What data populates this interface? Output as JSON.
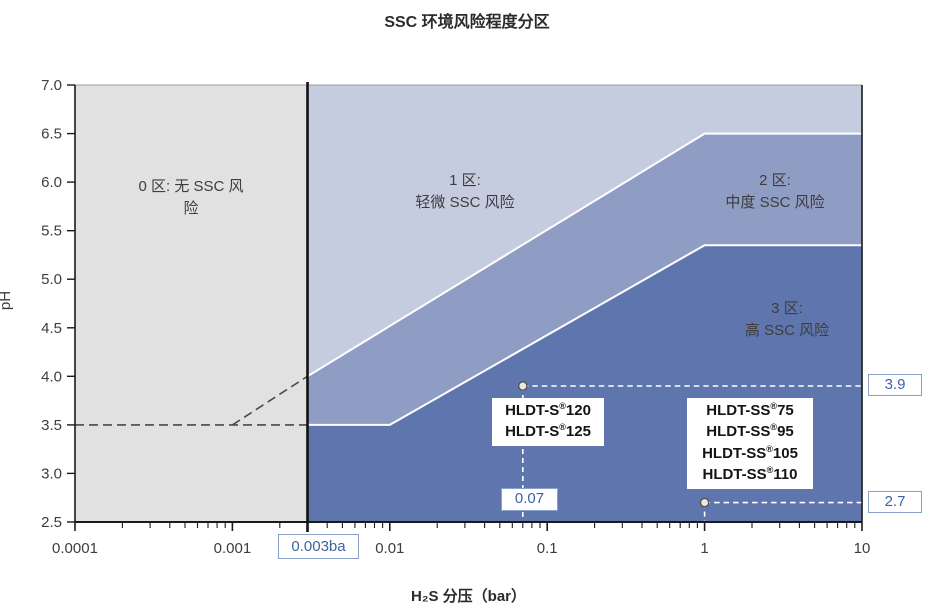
{
  "chart_data": {
    "type": "area",
    "title": "SSC 环境风险程度分区",
    "xlabel": "H₂S 分压（bar）",
    "ylabel": "pH",
    "x_scale": "log",
    "xlim": [
      0.0001,
      10
    ],
    "ylim": [
      2.5,
      7.0
    ],
    "x_ticks": [
      "0.0001",
      "0.001",
      "0.01",
      "0.1",
      "1",
      "10"
    ],
    "y_ticks": [
      "2.5",
      "3.0",
      "3.5",
      "4.0",
      "4.5",
      "5.0",
      "5.5",
      "6.0",
      "6.5",
      "7.0"
    ],
    "grid": false,
    "h2s_threshold": 0.003,
    "threshold_label": "0.003ba",
    "zones": [
      {
        "name": "zone-0",
        "label": "0 区: 无 SSC 风\n险",
        "color": "#e1e1e1"
      },
      {
        "name": "zone-1",
        "label": "1 区:\n轻微 SSC 风险",
        "color": "#c6cce0"
      },
      {
        "name": "zone-2",
        "label": "2 区:\n中度 SSC 风险",
        "color": "#8f9cc4"
      },
      {
        "name": "zone-3",
        "label": "3 区:\n高 SSC 风险",
        "color": "#5e76ad"
      }
    ],
    "boundaries": {
      "zone1_2": [
        [
          0.003,
          4.0
        ],
        [
          1,
          6.5
        ],
        [
          10,
          6.5
        ]
      ],
      "zone2_3": [
        [
          0.003,
          3.5
        ],
        [
          0.01,
          3.5
        ],
        [
          1,
          5.35
        ],
        [
          10,
          5.35
        ]
      ]
    },
    "zone0_guides": [
      [
        [
          0.0001,
          3.5
        ],
        [
          0.003,
          3.5
        ]
      ],
      [
        [
          0.001,
          3.5
        ],
        [
          0.003,
          4.0
        ]
      ]
    ],
    "points": [
      {
        "x": 0.07,
        "y": 3.9,
        "x_label": "0.07",
        "y_label": "3.9"
      },
      {
        "x": 1.0,
        "y": 2.7,
        "y_label": "2.7"
      }
    ],
    "product_groups": [
      {
        "lines": [
          "HLDT-S®120",
          "HLDT-S®125"
        ]
      },
      {
        "lines": [
          "HLDT-SS®75",
          "HLDT-SS®95",
          "HLDT-SS®105",
          "HLDT-SS®110"
        ]
      }
    ],
    "colors": {
      "boundary_line": "#ffffff",
      "axis": "#1a1a1a",
      "top_border": "#9e9e9e",
      "dashed_dark": "#4a4a4a",
      "dashed_white": "#ffffff",
      "marker_fill": "#e8e8e8",
      "marker_stroke": "#555555",
      "annotation_text": "#3f63a0",
      "annotation_border": "#8ba0c8"
    }
  }
}
